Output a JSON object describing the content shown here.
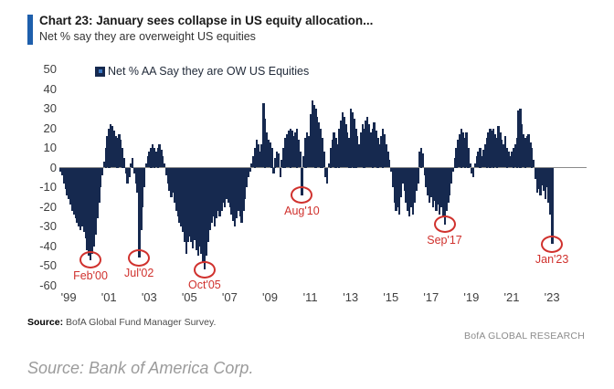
{
  "header": {
    "title": "Chart 23: January sees collapse in US equity allocation...",
    "subtitle": "Net % say they are overweight US equities"
  },
  "legend": {
    "label": "Net % AA Say they are OW US Equities"
  },
  "footer": {
    "source_label": "Source:",
    "source_text": " BofA Global Fund Manager Survey.",
    "research_credit": "BofA GLOBAL RESEARCH",
    "caption": "Source: Bank of America Corp."
  },
  "colors": {
    "bar": "#16294f",
    "accent_bar": "#1e5fac",
    "annotation_red": "#d0312d",
    "axis_line": "#8a8a8a"
  },
  "chart_data": {
    "type": "bar",
    "title": "Net % AA Say they are OW US Equities",
    "xlabel": "",
    "ylabel": "Net % say they are overweight US equities",
    "ylim": [
      -60,
      50
    ],
    "yticks": [
      50,
      40,
      30,
      20,
      10,
      0,
      -10,
      -20,
      -30,
      -40,
      -50,
      -60
    ],
    "grid": false,
    "legend_position": "top",
    "frequency": "monthly",
    "x_start": "1998-08",
    "x_end": "2023-01",
    "values": [
      -2,
      -4,
      -8,
      -11,
      -14,
      -16,
      -19,
      -22,
      -24,
      -26,
      -28,
      -30,
      -32,
      -30,
      -33,
      -36,
      -42,
      -45,
      -47,
      -44,
      -40,
      -34,
      -26,
      -18,
      -10,
      -4,
      3,
      10,
      16,
      20,
      22,
      21,
      19,
      16,
      15,
      17,
      14,
      10,
      5,
      -3,
      -8,
      -5,
      2,
      5,
      -3,
      -8,
      -13,
      -46,
      -32,
      -20,
      -10,
      2,
      6,
      8,
      10,
      12,
      10,
      8,
      10,
      12,
      9,
      6,
      2,
      -4,
      -8,
      -12,
      -15,
      -13,
      -18,
      -22,
      -25,
      -28,
      -30,
      -33,
      -38,
      -44,
      -38,
      -35,
      -38,
      -41,
      -37,
      -42,
      -45,
      -40,
      -44,
      -48,
      -52,
      -45,
      -38,
      -32,
      -28,
      -25,
      -30,
      -26,
      -22,
      -25,
      -22,
      -18,
      -20,
      -16,
      -18,
      -20,
      -24,
      -27,
      -30,
      -26,
      -22,
      -25,
      -28,
      -22,
      -16,
      -10,
      -5,
      -2,
      2,
      6,
      10,
      14,
      12,
      8,
      12,
      33,
      25,
      18,
      14,
      13,
      10,
      -3,
      5,
      8,
      7,
      -5,
      4,
      10,
      15,
      17,
      19,
      20,
      19,
      16,
      18,
      20,
      14,
      8,
      -14,
      6,
      15,
      18,
      16,
      27,
      34,
      32,
      30,
      26,
      23,
      20,
      15,
      8,
      -5,
      -8,
      2,
      10,
      14,
      18,
      15,
      12,
      20,
      24,
      28,
      26,
      22,
      18,
      15,
      30,
      28,
      25,
      20,
      16,
      12,
      18,
      22,
      20,
      24,
      26,
      22,
      18,
      20,
      23,
      19,
      15,
      12,
      16,
      20,
      17,
      12,
      8,
      4,
      -2,
      -10,
      -18,
      -22,
      -20,
      -24,
      -15,
      -8,
      -12,
      -18,
      -22,
      -25,
      -20,
      -24,
      -18,
      -12,
      -8,
      8,
      10,
      7,
      -4,
      -10,
      -14,
      -18,
      -15,
      -20,
      -17,
      -22,
      -19,
      -24,
      -20,
      -25,
      -29,
      -22,
      -18,
      -14,
      -8,
      -2,
      5,
      10,
      14,
      17,
      20,
      18,
      15,
      18,
      10,
      2,
      -3,
      -5,
      2,
      6,
      8,
      10,
      6,
      9,
      12,
      15,
      18,
      20,
      19,
      20,
      17,
      15,
      21,
      18,
      14,
      12,
      16,
      10,
      8,
      6,
      8,
      10,
      12,
      15,
      29,
      30,
      22,
      17,
      15,
      16,
      17,
      13,
      10,
      4,
      -6,
      -13,
      -11,
      -14,
      -9,
      -12,
      -16,
      -10,
      -18,
      -24,
      -39
    ],
    "xticks": [
      {
        "label": "'99",
        "index": 5
      },
      {
        "label": "'01",
        "index": 29
      },
      {
        "label": "'03",
        "index": 53
      },
      {
        "label": "'05",
        "index": 77
      },
      {
        "label": "'07",
        "index": 101
      },
      {
        "label": "'09",
        "index": 125
      },
      {
        "label": "'11",
        "index": 149
      },
      {
        "label": "'13",
        "index": 173
      },
      {
        "label": "'15",
        "index": 197
      },
      {
        "label": "'17",
        "index": 221
      },
      {
        "label": "'19",
        "index": 245
      },
      {
        "label": "'21",
        "index": 269
      },
      {
        "label": "'23",
        "index": 293
      }
    ],
    "annotations": [
      {
        "label": "Feb'00",
        "index": 18,
        "value": -47
      },
      {
        "label": "Jul'02",
        "index": 47,
        "value": -46
      },
      {
        "label": "Oct'05",
        "index": 86,
        "value": -52
      },
      {
        "label": "Aug'10",
        "index": 144,
        "value": -14
      },
      {
        "label": "Sep'17",
        "index": 229,
        "value": -29
      },
      {
        "label": "Jan'23",
        "index": 293,
        "value": -39
      }
    ]
  }
}
